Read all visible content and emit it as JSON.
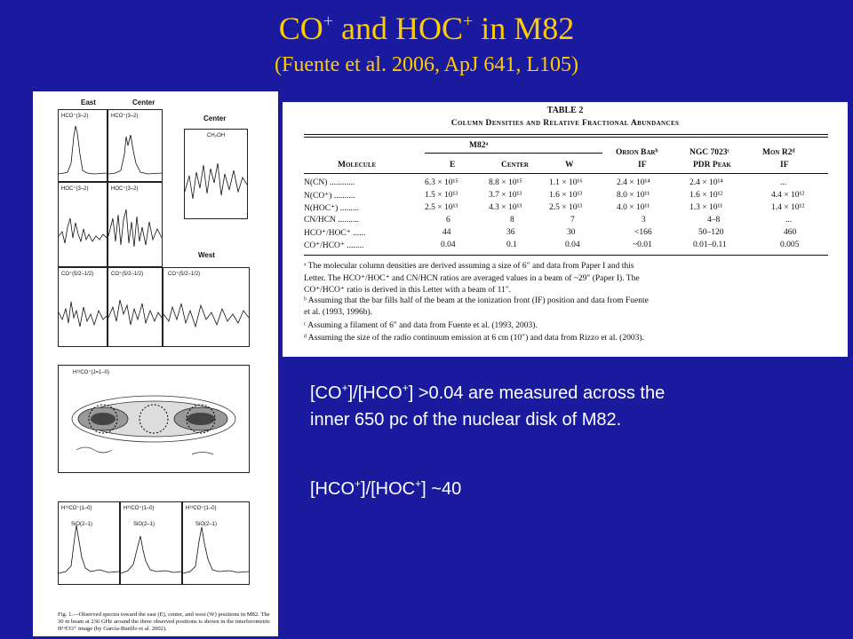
{
  "title": {
    "main": "CO",
    "sup1": "+",
    "and": " and HOC",
    "sup2": "+",
    "rest": " in M82"
  },
  "subtitle": "(Fuente et al. 2006, ApJ 641, L105)",
  "figure": {
    "col_east": "East",
    "col_center": "Center",
    "center_label": "Center",
    "west_label": "West",
    "rows": [
      {
        "a": "HCO⁺(3–2)",
        "b": "HCO⁺(3–2)"
      },
      {
        "a": "HOC⁺(3–2)",
        "b": "HOC⁺(3–2)"
      },
      {
        "a": "CO⁺(5/2–1/2)",
        "b": "CO⁺(5/2–1/2)",
        "c": "CO⁺(5/2–1/2)"
      }
    ],
    "ch3oh": "CH₃OH",
    "map_label": "H¹³CO⁺(J=1–0)",
    "bottom_labels": [
      "H¹³CO⁺(1–0)",
      "H¹³CO⁺(1–0)",
      "H¹³CO⁺(1–0)"
    ],
    "sio_labels": [
      "SiO(2–1)",
      "SiO(2–1)",
      "SiO(2–1)"
    ],
    "caption": "Fig. 1.—Observed spectra toward the east (E), center, and west (W) positions in M82. The 30 m beam at 236 GHz around the three observed positions is shown in the interferometric H¹³CO⁺ image (by García-Burillo et al. 2002)."
  },
  "table": {
    "caption1": "TABLE 2",
    "caption2": "Column Densities and Relative Fractional Abundances",
    "group_m82": "M82ᵃ",
    "group_orion": "Orion Barᵇ",
    "group_ngc": "NGC 7023ᶜ",
    "group_mon": "Mon R2ᵈ",
    "headers": [
      "Molecule",
      "E",
      "Center",
      "W",
      "IF",
      "PDR Peak",
      "IF"
    ],
    "rows": [
      [
        "N(CN) ............",
        "6.3 × 10¹⁵",
        "8.8 × 10¹⁵",
        "1.1 × 10¹⁶",
        "2.4 × 10¹⁴",
        "2.4 × 10¹⁴",
        "..."
      ],
      [
        "N(CO⁺) ..........",
        "1.5 × 10¹³",
        "3.7 × 10¹³",
        "1.6 × 10¹³",
        "8.0 × 10¹¹",
        "1.6 × 10¹²",
        "4.4 × 10¹²"
      ],
      [
        "N(HOC⁺) .........",
        "2.5 × 10¹³",
        "4.3 × 10¹³",
        "2.5 × 10¹³",
        "4.0 × 10¹¹",
        "1.3 × 10¹¹",
        "1.4 × 10¹²"
      ],
      [
        "CN/HCN ..........",
        "6",
        "8",
        "7",
        "3",
        "4–8",
        "..."
      ],
      [
        "HCO⁺/HOC⁺ ......",
        "44",
        "36",
        "30",
        "<166",
        "50–120",
        "460"
      ],
      [
        "CO⁺/HCO⁺ ........",
        "0.04",
        "0.1",
        "0.04",
        "~0.01",
        "0.01–0.11",
        "0.005"
      ]
    ],
    "notes": [
      "ᵃ The molecular column densities are derived assuming a size of 6″ and data from Paper I and this",
      "Letter. The HCO⁺/HOC⁺ and CN/HCN ratios are averaged values in a beam of ~29″ (Paper I). The",
      "CO⁺/HCO⁺ ratio is derived in this Letter with a beam of 11″.",
      "ᵇ Assuming that the bar fills half of the beam at the ionization front (IF) position and data from Fuente",
      "et al. (1993, 1996b).",
      "ᶜ Assuming a filament of 6″ and data from Fuente et al. (1993, 2003).",
      "ᵈ Assuming the size of the radio continuum emission at 6 cm (10″) and data from Rizzo et al. (2003)."
    ]
  },
  "bullets": {
    "b1_p1": "[CO",
    "b1_s1": "+",
    "b1_p2": "]/[HCO",
    "b1_s2": "+",
    "b1_p3": "] >0.04 are measured across the",
    "b1_line2": "inner 650 pc of the nuclear disk of M82.",
    "b2_p1": "[HCO",
    "b2_s1": "+",
    "b2_p2": "]/[HOC",
    "b2_s2": "+",
    "b2_p3": "] ~40"
  }
}
